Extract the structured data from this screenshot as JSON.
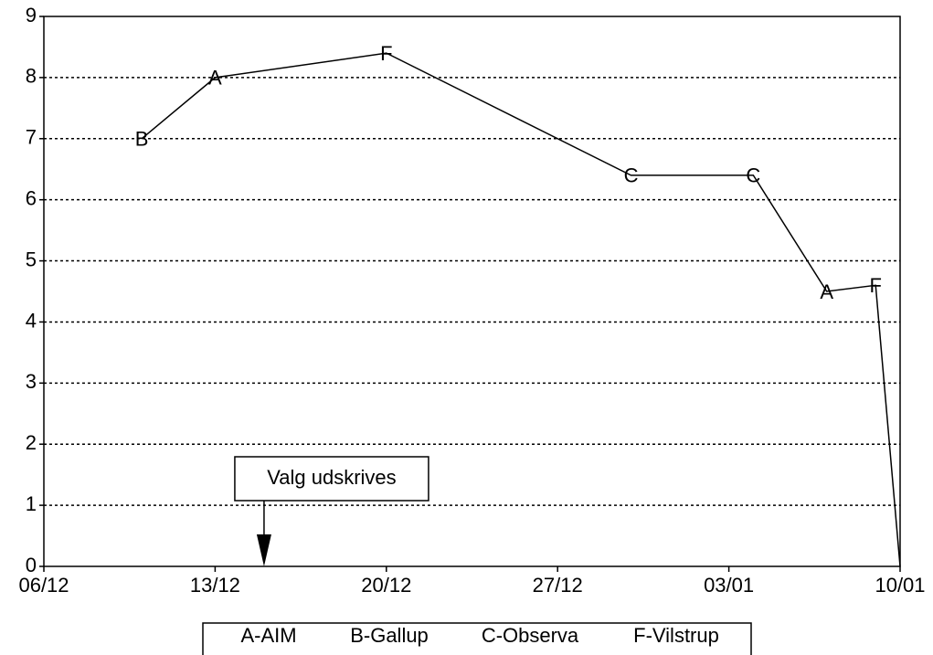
{
  "chart_data": {
    "type": "line",
    "x": [
      "10/12",
      "13/12",
      "20/12",
      "30/12",
      "04/01",
      "07/01",
      "09/01",
      "10/01"
    ],
    "values": [
      7.0,
      8.0,
      8.4,
      6.4,
      6.4,
      4.5,
      4.6,
      0
    ],
    "markers": [
      "B",
      "A",
      "F",
      "C",
      "C",
      "A",
      "F",
      null
    ],
    "color": "#000000",
    "xlim": [
      "06/12",
      "10/01"
    ],
    "xticks": [
      "06/12",
      "13/12",
      "20/12",
      "27/12",
      "03/01",
      "10/01"
    ],
    "ylim": [
      0,
      9
    ],
    "yticks": [
      0,
      1,
      2,
      3,
      4,
      5,
      6,
      7,
      8,
      9
    ],
    "grid": true,
    "annotation": {
      "text": "Valg udskrives",
      "x": "15/12"
    },
    "legend": [
      "A-AIM",
      "B-Gallup",
      "C-Observa",
      "F-Vilstrup"
    ]
  }
}
